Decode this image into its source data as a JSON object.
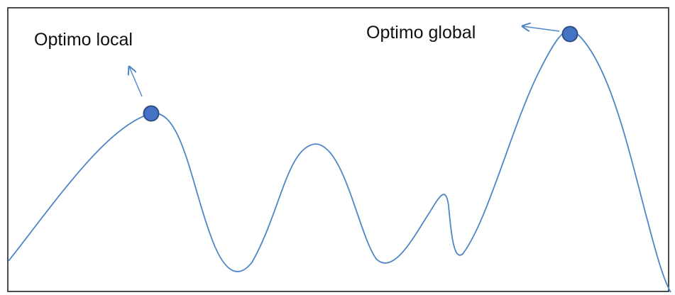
{
  "labels": {
    "local_optimum": "Optimo local",
    "global_optimum": "Optimo global"
  },
  "colors": {
    "curve": "#4f86c6",
    "marker_fill": "#4472c4",
    "marker_stroke": "#2f4f80",
    "frame": "#222222",
    "text": "#111111"
  }
}
